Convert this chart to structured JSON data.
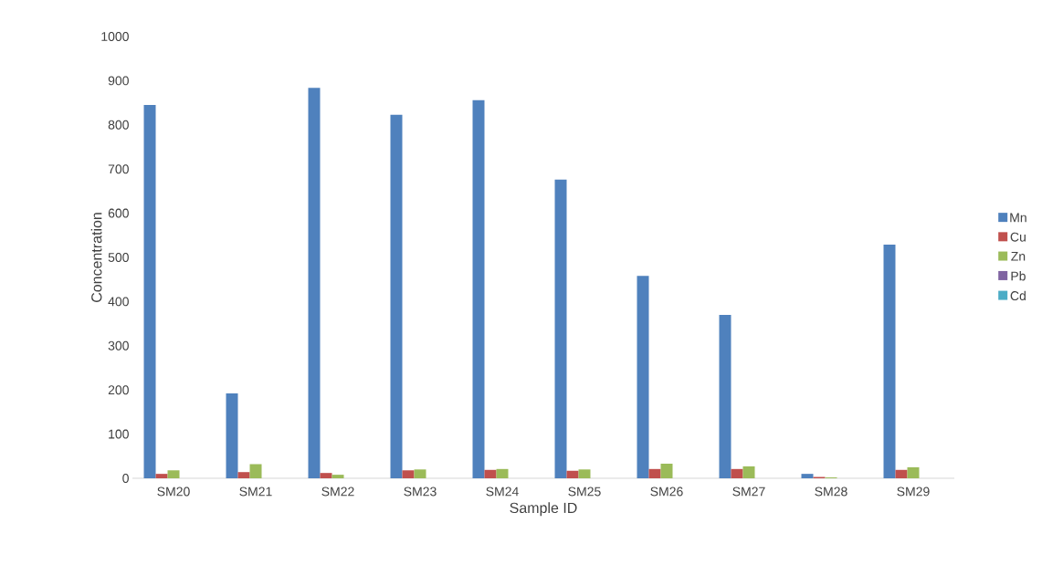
{
  "chart_data": {
    "type": "bar",
    "xlabel": "Sample ID",
    "ylabel": "Concentration",
    "categories": [
      "SM20",
      "SM21",
      "SM22",
      "SM23",
      "SM24",
      "SM25",
      "SM26",
      "SM27",
      "SM28",
      "SM29"
    ],
    "series": [
      {
        "name": "Mn",
        "color": "#4f81bd",
        "values": [
          845,
          192,
          884,
          823,
          856,
          676,
          458,
          370,
          10,
          529
        ]
      },
      {
        "name": "Cu",
        "color": "#c0504d",
        "values": [
          10,
          14,
          12,
          18,
          19,
          17,
          21,
          21,
          3,
          19
        ]
      },
      {
        "name": "Zn",
        "color": "#9bbb59",
        "values": [
          18,
          32,
          8,
          20,
          21,
          20,
          33,
          27,
          2,
          25
        ]
      },
      {
        "name": "Pb",
        "color": "#8064a2",
        "values": [
          0,
          0,
          0,
          0,
          0,
          0,
          0,
          0,
          0,
          0
        ]
      },
      {
        "name": "Cd",
        "color": "#4bacc6",
        "values": [
          0,
          0,
          0,
          0,
          0,
          0,
          0,
          0,
          0,
          0
        ]
      }
    ],
    "ylim": [
      0,
      1000
    ],
    "yticks": [
      0,
      100,
      200,
      300,
      400,
      500,
      600,
      700,
      800,
      900,
      1000
    ],
    "grid": false,
    "legend": "right"
  }
}
